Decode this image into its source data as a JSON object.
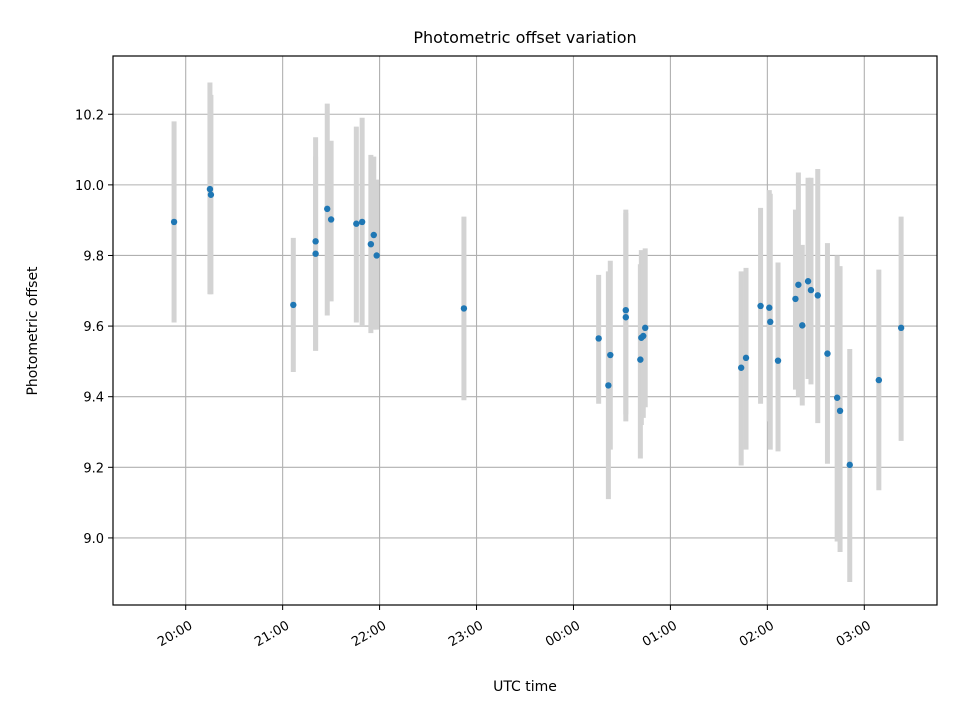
{
  "chart_data": {
    "type": "scatter",
    "title": "Photometric offset variation",
    "xlabel": "UTC time",
    "ylabel": "Photometric offset",
    "grid": true,
    "colors": {
      "point": "#1f77b4",
      "errorbar": "#d3d3d3",
      "grid": "#b0b0b0",
      "axis": "#000000"
    },
    "x_unit": "hours relative to 00:00 UTC",
    "xlim": [
      -4.75,
      3.75
    ],
    "ylim": [
      8.81,
      10.365
    ],
    "xticks": [
      {
        "value": -4,
        "label": "20:00"
      },
      {
        "value": -3,
        "label": "21:00"
      },
      {
        "value": -2,
        "label": "22:00"
      },
      {
        "value": -1,
        "label": "23:00"
      },
      {
        "value": 0,
        "label": "00:00"
      },
      {
        "value": 1,
        "label": "01:00"
      },
      {
        "value": 2,
        "label": "02:00"
      },
      {
        "value": 3,
        "label": "03:00"
      }
    ],
    "yticks": [
      {
        "value": 9.0,
        "label": "9.0"
      },
      {
        "value": 9.2,
        "label": "9.2"
      },
      {
        "value": 9.4,
        "label": "9.4"
      },
      {
        "value": 9.6,
        "label": "9.6"
      },
      {
        "value": 9.8,
        "label": "9.8"
      },
      {
        "value": 10.0,
        "label": "10.0"
      },
      {
        "value": 10.2,
        "label": "10.2"
      }
    ],
    "points": [
      {
        "x": -4.12,
        "y": 9.895,
        "ylo": 9.61,
        "yhi": 10.18
      },
      {
        "x": -3.75,
        "y": 9.988,
        "ylo": 9.69,
        "yhi": 10.29
      },
      {
        "x": -3.74,
        "y": 9.972,
        "ylo": 9.69,
        "yhi": 10.255
      },
      {
        "x": -2.89,
        "y": 9.66,
        "ylo": 9.47,
        "yhi": 9.85
      },
      {
        "x": -2.66,
        "y": 9.84,
        "ylo": 9.53,
        "yhi": 10.135
      },
      {
        "x": -2.66,
        "y": 9.805,
        "ylo": 9.53,
        "yhi": 10.08
      },
      {
        "x": -2.54,
        "y": 9.932,
        "ylo": 9.63,
        "yhi": 10.23
      },
      {
        "x": -2.5,
        "y": 9.902,
        "ylo": 9.67,
        "yhi": 10.125
      },
      {
        "x": -2.24,
        "y": 9.89,
        "ylo": 9.61,
        "yhi": 10.165
      },
      {
        "x": -2.18,
        "y": 9.895,
        "ylo": 9.6,
        "yhi": 10.19
      },
      {
        "x": -2.09,
        "y": 9.832,
        "ylo": 9.58,
        "yhi": 10.085
      },
      {
        "x": -2.06,
        "y": 9.858,
        "ylo": 9.59,
        "yhi": 10.08
      },
      {
        "x": -2.03,
        "y": 9.8,
        "ylo": 9.59,
        "yhi": 10.015
      },
      {
        "x": -1.13,
        "y": 9.65,
        "ylo": 9.39,
        "yhi": 9.91
      },
      {
        "x": 0.26,
        "y": 9.565,
        "ylo": 9.38,
        "yhi": 9.745
      },
      {
        "x": 0.36,
        "y": 9.432,
        "ylo": 9.11,
        "yhi": 9.755
      },
      {
        "x": 0.38,
        "y": 9.518,
        "ylo": 9.25,
        "yhi": 9.785
      },
      {
        "x": 0.54,
        "y": 9.645,
        "ylo": 9.35,
        "yhi": 9.93
      },
      {
        "x": 0.54,
        "y": 9.625,
        "ylo": 9.33,
        "yhi": 9.92
      },
      {
        "x": 0.69,
        "y": 9.505,
        "ylo": 9.225,
        "yhi": 9.775
      },
      {
        "x": 0.7,
        "y": 9.567,
        "ylo": 9.32,
        "yhi": 9.815
      },
      {
        "x": 0.72,
        "y": 9.572,
        "ylo": 9.34,
        "yhi": 9.81
      },
      {
        "x": 0.74,
        "y": 9.595,
        "ylo": 9.37,
        "yhi": 9.82
      },
      {
        "x": 1.73,
        "y": 9.482,
        "ylo": 9.205,
        "yhi": 9.755
      },
      {
        "x": 1.78,
        "y": 9.51,
        "ylo": 9.25,
        "yhi": 9.765
      },
      {
        "x": 1.93,
        "y": 9.657,
        "ylo": 9.38,
        "yhi": 9.935
      },
      {
        "x": 2.02,
        "y": 9.652,
        "ylo": 9.33,
        "yhi": 9.985
      },
      {
        "x": 2.03,
        "y": 9.612,
        "ylo": 9.25,
        "yhi": 9.975
      },
      {
        "x": 2.11,
        "y": 9.502,
        "ylo": 9.245,
        "yhi": 9.78
      },
      {
        "x": 2.29,
        "y": 9.677,
        "ylo": 9.42,
        "yhi": 9.93
      },
      {
        "x": 2.32,
        "y": 9.717,
        "ylo": 9.4,
        "yhi": 10.035
      },
      {
        "x": 2.36,
        "y": 9.602,
        "ylo": 9.375,
        "yhi": 9.83
      },
      {
        "x": 2.42,
        "y": 9.727,
        "ylo": 9.45,
        "yhi": 10.02
      },
      {
        "x": 2.45,
        "y": 9.702,
        "ylo": 9.435,
        "yhi": 10.02
      },
      {
        "x": 2.52,
        "y": 9.687,
        "ylo": 9.325,
        "yhi": 10.045
      },
      {
        "x": 2.62,
        "y": 9.522,
        "ylo": 9.21,
        "yhi": 9.835
      },
      {
        "x": 2.72,
        "y": 9.397,
        "ylo": 8.99,
        "yhi": 9.8
      },
      {
        "x": 2.75,
        "y": 9.36,
        "ylo": 8.96,
        "yhi": 9.77
      },
      {
        "x": 2.85,
        "y": 9.207,
        "ylo": 8.875,
        "yhi": 9.535
      },
      {
        "x": 3.15,
        "y": 9.447,
        "ylo": 9.135,
        "yhi": 9.76
      },
      {
        "x": 3.38,
        "y": 9.595,
        "ylo": 9.275,
        "yhi": 9.91
      }
    ]
  }
}
